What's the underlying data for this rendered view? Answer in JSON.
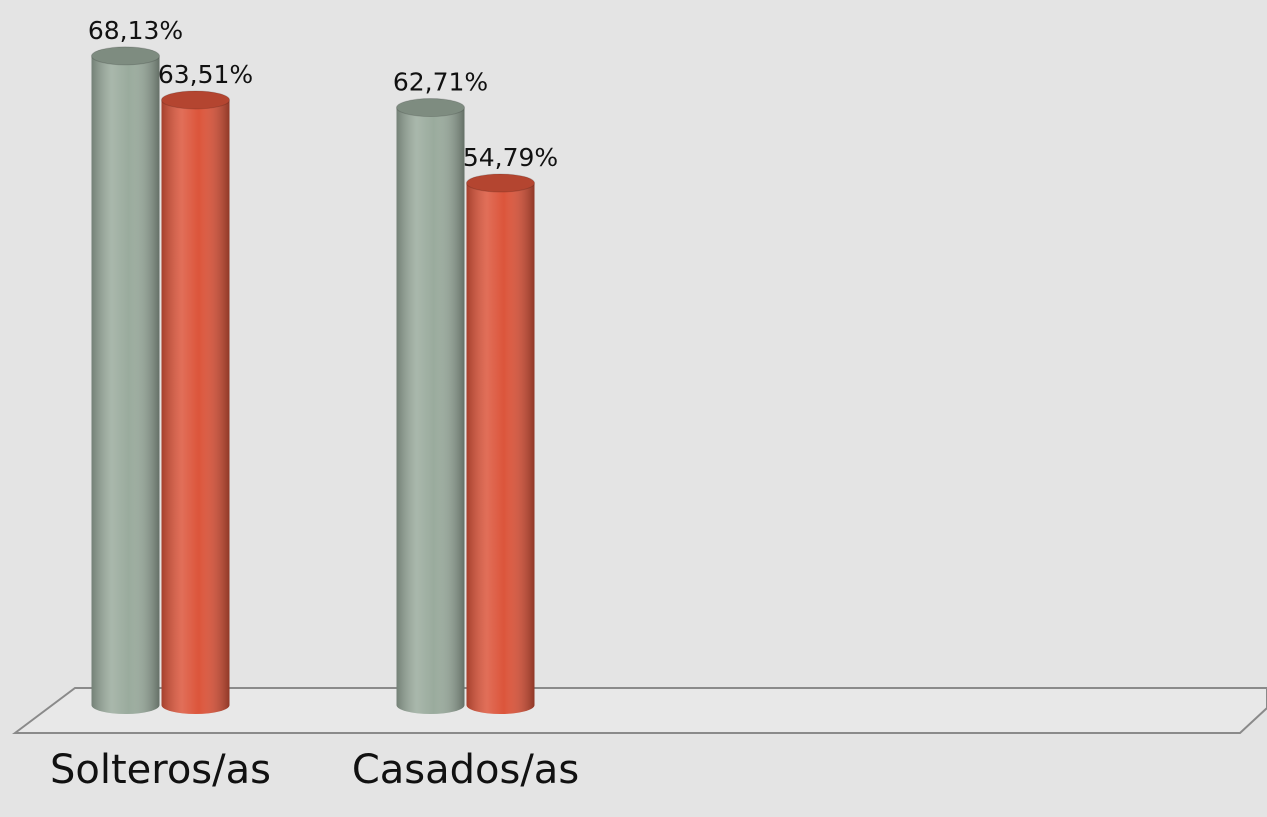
{
  "chart_data": {
    "type": "bar",
    "categories": [
      "Solteros/as",
      "Casados/as"
    ],
    "series": [
      {
        "color": "#9aab9d",
        "values": [
          68.13,
          62.71
        ],
        "value_labels": [
          "68,13%",
          "62,71%"
        ]
      },
      {
        "color": "#dc553b",
        "values": [
          63.51,
          54.79
        ],
        "value_labels": [
          "63,51%",
          "54,79%"
        ]
      }
    ],
    "ylim": [
      0,
      74
    ]
  }
}
